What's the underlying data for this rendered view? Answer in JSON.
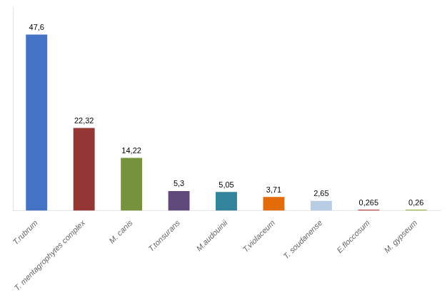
{
  "chart_data": {
    "type": "bar",
    "categories": [
      "T.rubrum",
      "T. mentagrophytes complex",
      "M. canis",
      "T.tonsurans",
      "M.audouinii",
      "T.violaceum",
      "T. soudanense",
      "E.floccosum",
      "M. gypseum"
    ],
    "values": [
      47.6,
      22.32,
      14.22,
      5.3,
      5.05,
      3.71,
      2.65,
      0.265,
      0.26
    ],
    "value_labels": [
      "47,6",
      "22,32",
      "14,22",
      "5,3",
      "5,05",
      "3,71",
      "2,65",
      "0,265",
      "0,26"
    ],
    "colors": [
      "#4472C4",
      "#943634",
      "#76923C",
      "#604A7B",
      "#31849B",
      "#E36C09",
      "#B8CCE4",
      "#C0504D",
      "#9BBB59"
    ],
    "ylim": [
      0,
      55
    ],
    "data_labels": true,
    "tick_labels": "x",
    "grid": false
  }
}
